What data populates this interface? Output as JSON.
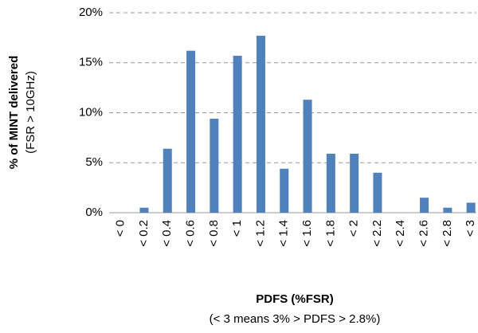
{
  "chart_data": {
    "type": "bar",
    "categories": [
      "< 0",
      "< 0.2",
      "< 0.4",
      "< 0.6",
      "< 0.8",
      "< 1",
      "< 1.2",
      "< 1.4",
      "< 1.6",
      "< 1.8",
      "< 2",
      "< 2.2",
      "< 2.4",
      "< 2.6",
      "< 2.8",
      "< 3"
    ],
    "values": [
      0,
      0.5,
      6.4,
      16.2,
      9.4,
      15.7,
      17.7,
      4.4,
      11.3,
      5.9,
      5.9,
      4.0,
      0,
      1.5,
      0.5,
      1.0
    ],
    "color": "#4f81bd",
    "ylim": [
      0,
      20
    ],
    "yticks": [
      {
        "value": 0,
        "label": "0%"
      },
      {
        "value": 5,
        "label": "5%"
      },
      {
        "value": 10,
        "label": "10%"
      },
      {
        "value": 15,
        "label": "15%"
      },
      {
        "value": 20,
        "label": "20%"
      }
    ],
    "grid": true,
    "y_label": "% of MINT delivered",
    "y_label_sub": "(FSR > 10GHz)",
    "x_label": "PDFS (%FSR)",
    "x_label_sub": "(< 3 means 3% > PDFS > 2.8%)"
  }
}
